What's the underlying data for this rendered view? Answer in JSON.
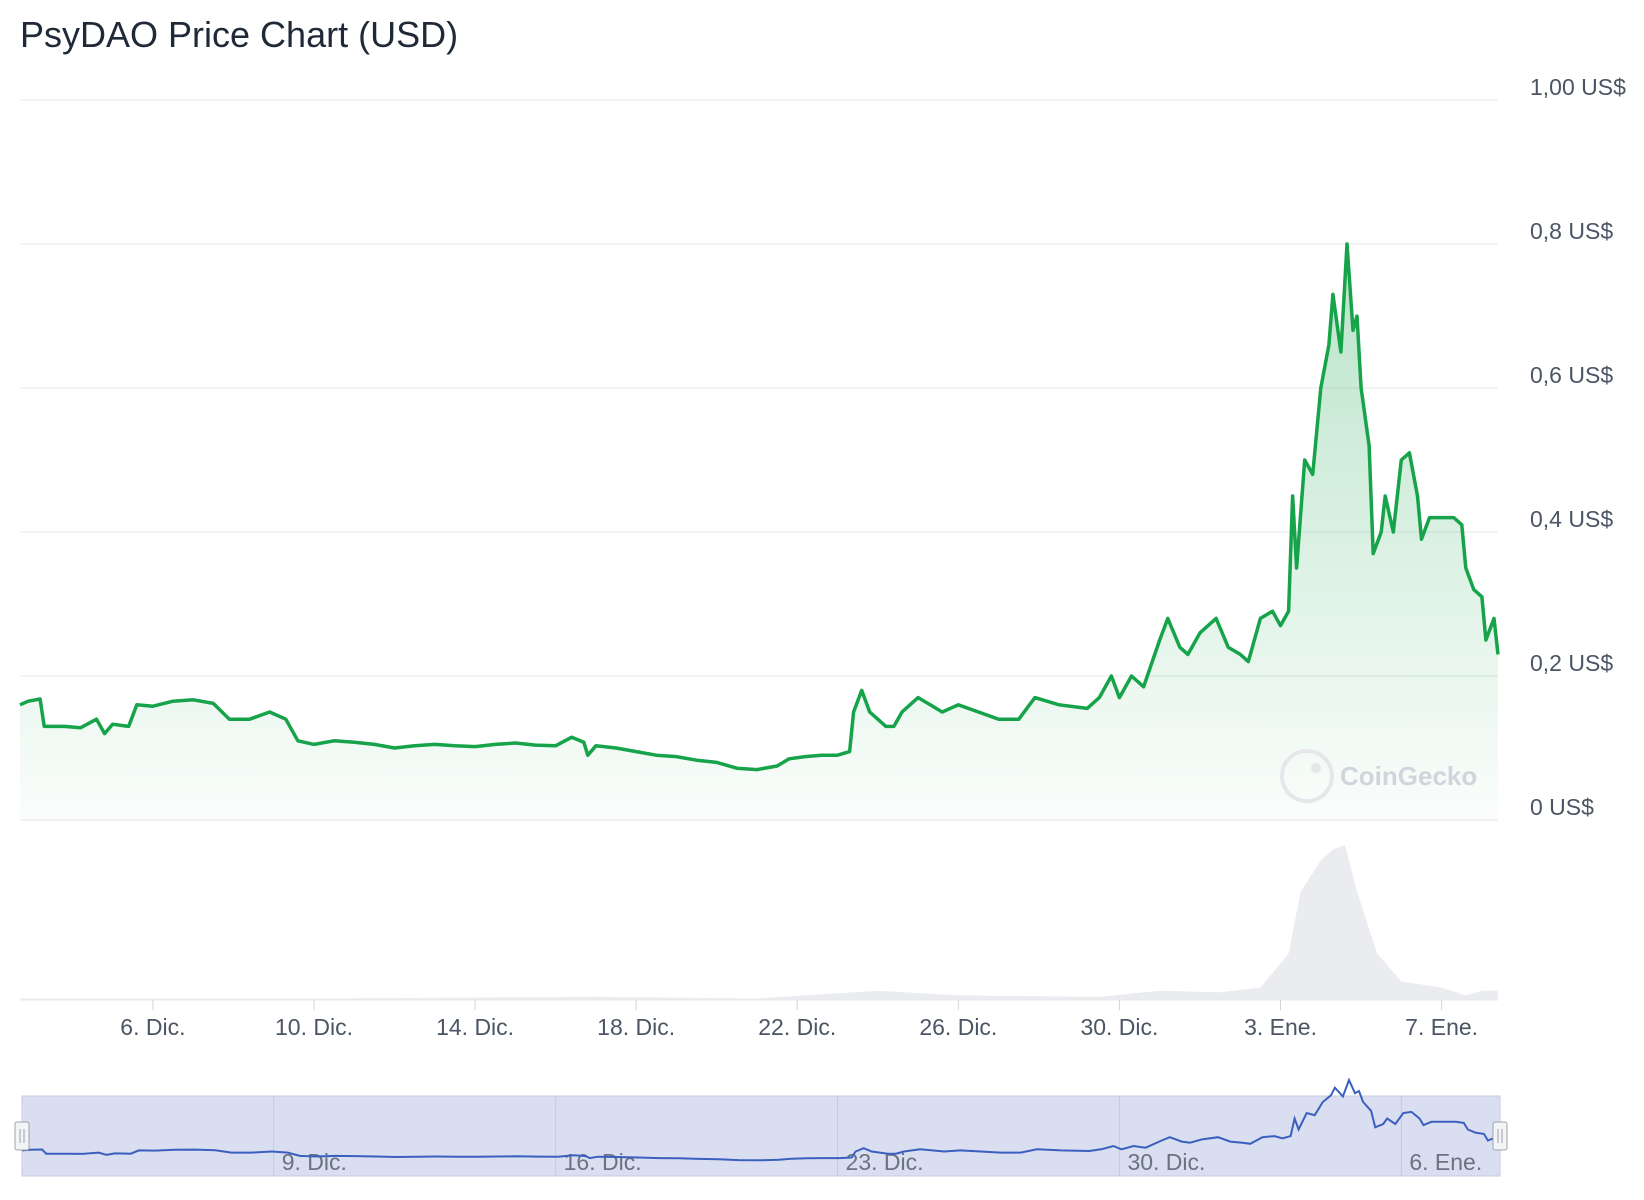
{
  "chart_data": {
    "type": "area",
    "title": "PsyDAO Price Chart (USD)",
    "watermark": "CoinGecko",
    "y_ticks": [
      "0 US$",
      "0,2 US$",
      "0,4 US$",
      "0,6 US$",
      "0,8 US$",
      "1,00 US$"
    ],
    "y_tick_values": [
      0,
      0.2,
      0.4,
      0.6,
      0.8,
      1.0
    ],
    "ylim": [
      0,
      1.0
    ],
    "x_ticks": [
      {
        "label": "6. Dic.",
        "day": 6
      },
      {
        "label": "10. Dic.",
        "day": 10
      },
      {
        "label": "14. Dic.",
        "day": 14
      },
      {
        "label": "18. Dic.",
        "day": 18
      },
      {
        "label": "22. Dic.",
        "day": 22
      },
      {
        "label": "26. Dic.",
        "day": 26
      },
      {
        "label": "30. Dic.",
        "day": 30
      },
      {
        "label": "3. Ene.",
        "day": 34
      },
      {
        "label": "7. Ene.",
        "day": 38
      }
    ],
    "xlim": [
      2.7,
      39.4
    ],
    "navigator_ticks": [
      {
        "label": "9. Dic.",
        "day": 9
      },
      {
        "label": "16. Dic.",
        "day": 16
      },
      {
        "label": "23. Dic.",
        "day": 23
      },
      {
        "label": "30. Dic.",
        "day": 30
      },
      {
        "label": "6. Ene.",
        "day": 37
      }
    ],
    "colors": {
      "line": "#16a34a",
      "area": "#16a34a",
      "volume": "#e5e7eb",
      "navigator": "#3b5fbf",
      "navigator_bg": "#d9dff0"
    },
    "price": [
      [
        2.7,
        0.16
      ],
      [
        2.9,
        0.165
      ],
      [
        3.2,
        0.168
      ],
      [
        3.3,
        0.13
      ],
      [
        3.8,
        0.13
      ],
      [
        4.2,
        0.128
      ],
      [
        4.6,
        0.14
      ],
      [
        4.8,
        0.12
      ],
      [
        5.0,
        0.133
      ],
      [
        5.4,
        0.13
      ],
      [
        5.6,
        0.16
      ],
      [
        6.0,
        0.158
      ],
      [
        6.5,
        0.165
      ],
      [
        7.0,
        0.167
      ],
      [
        7.5,
        0.162
      ],
      [
        7.9,
        0.14
      ],
      [
        8.4,
        0.14
      ],
      [
        8.9,
        0.15
      ],
      [
        9.3,
        0.14
      ],
      [
        9.6,
        0.11
      ],
      [
        10.0,
        0.105
      ],
      [
        10.5,
        0.11
      ],
      [
        11.0,
        0.108
      ],
      [
        11.5,
        0.105
      ],
      [
        12.0,
        0.1
      ],
      [
        12.5,
        0.103
      ],
      [
        13.0,
        0.105
      ],
      [
        13.5,
        0.103
      ],
      [
        14.0,
        0.102
      ],
      [
        14.5,
        0.105
      ],
      [
        15.0,
        0.107
      ],
      [
        15.5,
        0.104
      ],
      [
        16.0,
        0.103
      ],
      [
        16.4,
        0.115
      ],
      [
        16.7,
        0.108
      ],
      [
        16.8,
        0.09
      ],
      [
        17.0,
        0.103
      ],
      [
        17.5,
        0.1
      ],
      [
        18.0,
        0.095
      ],
      [
        18.5,
        0.09
      ],
      [
        19.0,
        0.088
      ],
      [
        19.5,
        0.083
      ],
      [
        20.0,
        0.08
      ],
      [
        20.5,
        0.072
      ],
      [
        21.0,
        0.07
      ],
      [
        21.5,
        0.075
      ],
      [
        21.8,
        0.085
      ],
      [
        22.2,
        0.088
      ],
      [
        22.6,
        0.09
      ],
      [
        23.0,
        0.09
      ],
      [
        23.3,
        0.095
      ],
      [
        23.4,
        0.15
      ],
      [
        23.6,
        0.18
      ],
      [
        23.8,
        0.15
      ],
      [
        24.0,
        0.14
      ],
      [
        24.2,
        0.13
      ],
      [
        24.4,
        0.13
      ],
      [
        24.6,
        0.15
      ],
      [
        24.8,
        0.16
      ],
      [
        25.0,
        0.17
      ],
      [
        25.3,
        0.16
      ],
      [
        25.6,
        0.15
      ],
      [
        26.0,
        0.16
      ],
      [
        26.5,
        0.15
      ],
      [
        27.0,
        0.14
      ],
      [
        27.5,
        0.14
      ],
      [
        27.9,
        0.17
      ],
      [
        28.5,
        0.16
      ],
      [
        29.2,
        0.155
      ],
      [
        29.5,
        0.17
      ],
      [
        29.8,
        0.2
      ],
      [
        30.0,
        0.17
      ],
      [
        30.3,
        0.2
      ],
      [
        30.6,
        0.185
      ],
      [
        31.0,
        0.25
      ],
      [
        31.2,
        0.28
      ],
      [
        31.5,
        0.24
      ],
      [
        31.7,
        0.23
      ],
      [
        32.0,
        0.26
      ],
      [
        32.4,
        0.28
      ],
      [
        32.7,
        0.24
      ],
      [
        33.0,
        0.23
      ],
      [
        33.2,
        0.22
      ],
      [
        33.5,
        0.28
      ],
      [
        33.8,
        0.29
      ],
      [
        34.0,
        0.27
      ],
      [
        34.2,
        0.29
      ],
      [
        34.3,
        0.45
      ],
      [
        34.4,
        0.35
      ],
      [
        34.6,
        0.5
      ],
      [
        34.8,
        0.48
      ],
      [
        35.0,
        0.6
      ],
      [
        35.2,
        0.66
      ],
      [
        35.3,
        0.73
      ],
      [
        35.5,
        0.65
      ],
      [
        35.65,
        0.8
      ],
      [
        35.8,
        0.68
      ],
      [
        35.9,
        0.7
      ],
      [
        36.0,
        0.6
      ],
      [
        36.2,
        0.52
      ],
      [
        36.3,
        0.37
      ],
      [
        36.5,
        0.4
      ],
      [
        36.6,
        0.45
      ],
      [
        36.8,
        0.4
      ],
      [
        37.0,
        0.5
      ],
      [
        37.2,
        0.51
      ],
      [
        37.4,
        0.45
      ],
      [
        37.5,
        0.39
      ],
      [
        37.7,
        0.42
      ],
      [
        38.0,
        0.42
      ],
      [
        38.3,
        0.42
      ],
      [
        38.5,
        0.41
      ],
      [
        38.6,
        0.35
      ],
      [
        38.8,
        0.32
      ],
      [
        39.0,
        0.31
      ],
      [
        39.1,
        0.25
      ],
      [
        39.3,
        0.28
      ],
      [
        39.4,
        0.23
      ]
    ],
    "volume_relative": [
      [
        2.7,
        0.01
      ],
      [
        10.0,
        0.01
      ],
      [
        17.0,
        0.02
      ],
      [
        21.0,
        0.01
      ],
      [
        24.0,
        0.06
      ],
      [
        26.0,
        0.03
      ],
      [
        29.5,
        0.02
      ],
      [
        31.0,
        0.06
      ],
      [
        32.5,
        0.05
      ],
      [
        33.5,
        0.08
      ],
      [
        34.2,
        0.3
      ],
      [
        34.5,
        0.7
      ],
      [
        35.0,
        0.9
      ],
      [
        35.3,
        0.97
      ],
      [
        35.6,
        1.0
      ],
      [
        35.9,
        0.7
      ],
      [
        36.4,
        0.3
      ],
      [
        37.0,
        0.12
      ],
      [
        38.0,
        0.08
      ],
      [
        38.6,
        0.03
      ],
      [
        39.0,
        0.06
      ],
      [
        39.4,
        0.06
      ]
    ]
  }
}
